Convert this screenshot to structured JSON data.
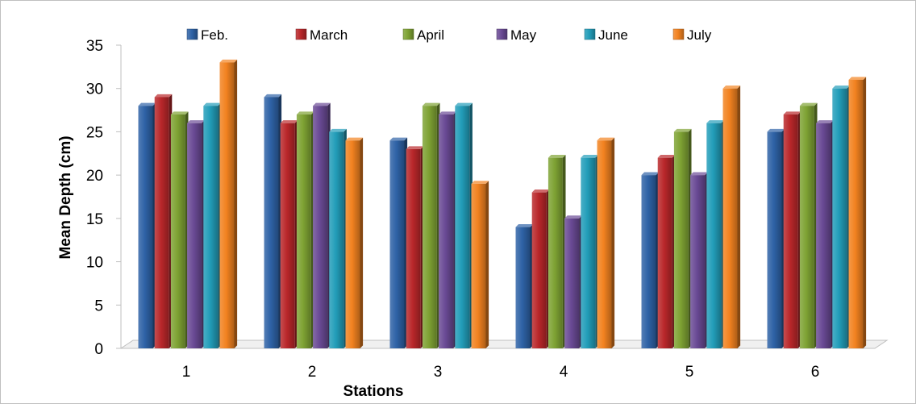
{
  "chart_data": {
    "type": "bar",
    "title": "",
    "xlabel": "Stations",
    "ylabel": "Mean Depth (cm)",
    "categories": [
      "1",
      "2",
      "3",
      "4",
      "5",
      "6"
    ],
    "ylim": [
      0,
      35
    ],
    "yticks": [
      "0",
      "5",
      "10",
      "15",
      "20",
      "25",
      "30",
      "35"
    ],
    "legend_position": "top",
    "grid": false,
    "series": [
      {
        "name": "Feb.",
        "color": "#2e62a6",
        "values": [
          28,
          29,
          24,
          14,
          20,
          25
        ]
      },
      {
        "name": "March",
        "color": "#b9272a",
        "values": [
          29,
          26,
          23,
          18,
          22,
          27
        ]
      },
      {
        "name": "April",
        "color": "#7ea233",
        "values": [
          27,
          27,
          28,
          22,
          25,
          28
        ]
      },
      {
        "name": "May",
        "color": "#6a4a95",
        "values": [
          26,
          28,
          27,
          15,
          20,
          26
        ]
      },
      {
        "name": "June",
        "color": "#229db9",
        "values": [
          28,
          25,
          28,
          22,
          26,
          30
        ]
      },
      {
        "name": "July",
        "color": "#f28220",
        "values": [
          33,
          24,
          19,
          24,
          30,
          31
        ]
      }
    ]
  }
}
